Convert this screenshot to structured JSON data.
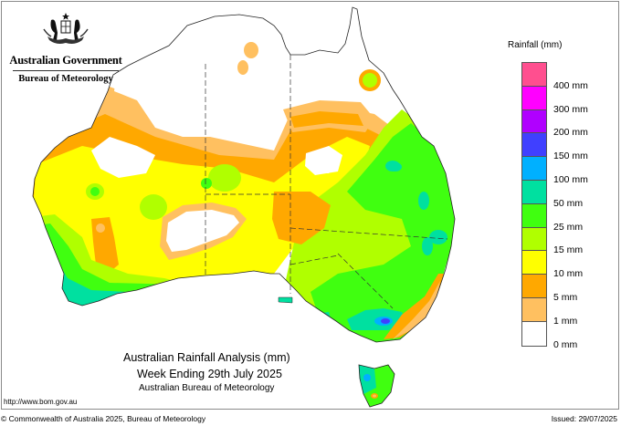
{
  "header": {
    "government": "Australian Government",
    "bureau": "Bureau of Meteorology",
    "crest_icon": "coat-of-arms-icon"
  },
  "map": {
    "title": "Australian Rainfall Analysis (mm)",
    "subtitle": "Week Ending 29th July 2025",
    "source": "Australian Bureau of Meteorology",
    "region": "Australia",
    "projection_boundaries": "state borders (dashed)"
  },
  "legend": {
    "title": "Rainfall (mm)",
    "swatches": [
      {
        "color": "#ff4f8f",
        "range": "400+ mm"
      },
      {
        "color": "#ff00ff",
        "range": "300-400 mm"
      },
      {
        "color": "#b000ff",
        "range": "200-300 mm"
      },
      {
        "color": "#4040ff",
        "range": "150-200 mm"
      },
      {
        "color": "#00b0ff",
        "range": "100-150 mm"
      },
      {
        "color": "#00e0a0",
        "range": "50-100 mm"
      },
      {
        "color": "#40ff10",
        "range": "25-50 mm"
      },
      {
        "color": "#b0ff00",
        "range": "15-25 mm"
      },
      {
        "color": "#ffff00",
        "range": "10-15 mm"
      },
      {
        "color": "#ffa800",
        "range": "5-10 mm"
      },
      {
        "color": "#ffc060",
        "range": "1-5 mm"
      },
      {
        "color": "#ffffff",
        "range": "0-1 mm"
      }
    ],
    "labels": [
      "400 mm",
      "300 mm",
      "200 mm",
      "150 mm",
      "100 mm",
      "50 mm",
      "25 mm",
      "15 mm",
      "10 mm",
      "5 mm",
      "1 mm",
      "0 mm"
    ]
  },
  "footer": {
    "url": "http://www.bom.gov.au",
    "copyright": "© Commonwealth of Australia 2025, Bureau of Meteorology",
    "issued": "Issued: 29/07/2025"
  },
  "colors": {
    "white": "#ffffff",
    "light_orange": "#ffc060",
    "orange": "#ffa800",
    "yellow": "#ffff00",
    "yellow_green": "#b0ff00",
    "green": "#40ff10",
    "teal": "#00e0a0",
    "sky": "#00b0ff",
    "blue": "#4040ff"
  }
}
